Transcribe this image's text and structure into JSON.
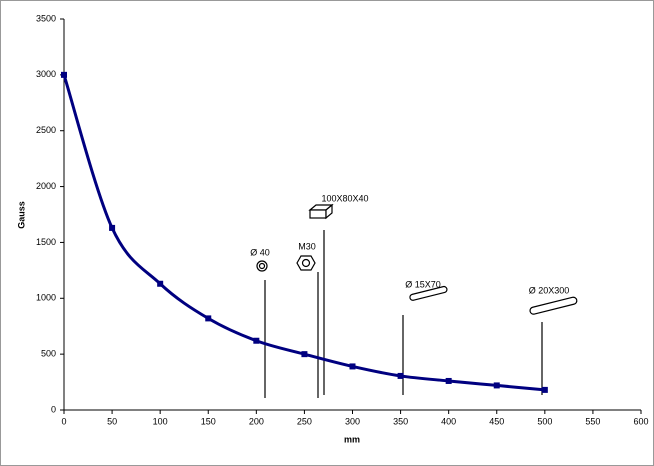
{
  "chart_data": {
    "type": "line",
    "x": [
      0,
      50,
      100,
      150,
      200,
      250,
      300,
      350,
      400,
      450,
      500
    ],
    "values": [
      3000,
      1630,
      1130,
      820,
      620,
      500,
      390,
      305,
      260,
      220,
      180
    ],
    "color": "#000080",
    "xlabel": "mm",
    "ylabel": "Gauss",
    "xlim": [
      0,
      600
    ],
    "xticks": [
      0,
      50,
      100,
      150,
      200,
      250,
      300,
      350,
      400,
      450,
      500,
      550,
      600
    ],
    "ylim": [
      0,
      3500
    ],
    "yticks": [
      0,
      500,
      1000,
      1500,
      2000,
      2500,
      3000,
      3500
    ],
    "annotations": [
      "Ø 40",
      "M30",
      "100X80X40",
      "Ø 15X70",
      "Ø 20X300"
    ]
  }
}
